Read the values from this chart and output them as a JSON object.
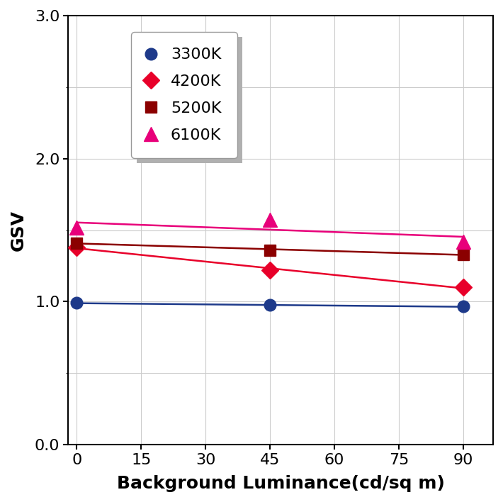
{
  "x_values": [
    0,
    45,
    90
  ],
  "series": [
    {
      "label": "3300K",
      "color": "#1e3a8a",
      "marker": "o",
      "marker_size": 12,
      "y_values": [
        0.99,
        0.975,
        0.965
      ]
    },
    {
      "label": "4200K",
      "color": "#e8002a",
      "marker": "D",
      "marker_size": 12,
      "y_values": [
        1.38,
        1.22,
        1.1
      ]
    },
    {
      "label": "5200K",
      "color": "#8b0000",
      "marker": "s",
      "marker_size": 12,
      "y_values": [
        1.41,
        1.36,
        1.33
      ]
    },
    {
      "label": "6100K",
      "color": "#e8007a",
      "marker": "^",
      "marker_size": 14,
      "y_values": [
        1.52,
        1.57,
        1.42
      ]
    }
  ],
  "xlabel": "Background Luminance(cd/sq m)",
  "ylabel": "GSV",
  "xlim": [
    -2,
    97
  ],
  "ylim": [
    0.0,
    3.0
  ],
  "xticks": [
    0,
    15,
    30,
    45,
    60,
    75,
    90
  ],
  "yticks": [
    0.0,
    1.0,
    2.0,
    3.0
  ],
  "ytick_labels": [
    "0.0",
    "1.0",
    "2.0",
    "3.0"
  ],
  "grid_color": "#cccccc",
  "background_color": "#ffffff",
  "label_fontsize": 18,
  "tick_fontsize": 16,
  "legend_fontsize": 16,
  "line_width": 1.8
}
